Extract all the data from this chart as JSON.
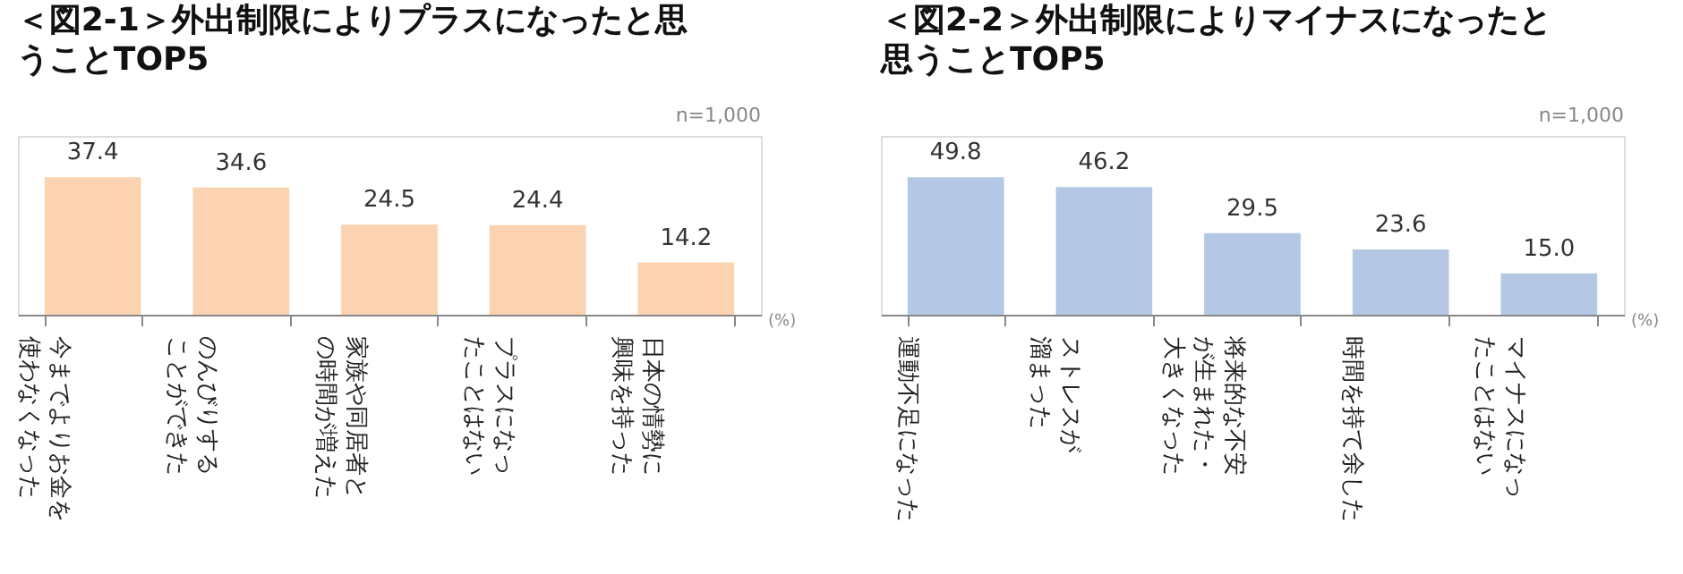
{
  "chart_data": [
    {
      "type": "bar",
      "title": "＜図2-1＞外出制限によりプラスになったと思うことTOP5",
      "categories": [
        "今までよりお金を使わなくなった",
        "のんびりすることができた",
        "家族や同居者との時間が増えた",
        "プラスになったことはない",
        "日本の情勢に興味を持った"
      ],
      "values": [
        37.4,
        34.6,
        24.5,
        24.4,
        14.2
      ],
      "value_labels": [
        "37.4",
        "34.6",
        "24.5",
        "24.4",
        "14.2"
      ],
      "color": "#fbd3b0",
      "annotations": [
        "n=1,000",
        "(%)"
      ]
    },
    {
      "type": "bar",
      "title": "＜図2-2＞外出制限によりマイナスになったと思うことTOP5",
      "categories": [
        "運動不足になった",
        "ストレスが溜まった",
        "将来的な不安が生まれた・大きくなった",
        "時間を持て余した",
        "マイナスになったことはない"
      ],
      "values": [
        49.8,
        46.2,
        29.5,
        23.6,
        15.0
      ],
      "value_labels": [
        "49.8",
        "46.2",
        "29.5",
        "23.6",
        "15.0"
      ],
      "color": "#b4c8e6",
      "annotations": [
        "n=1,000",
        "(%)"
      ]
    }
  ]
}
